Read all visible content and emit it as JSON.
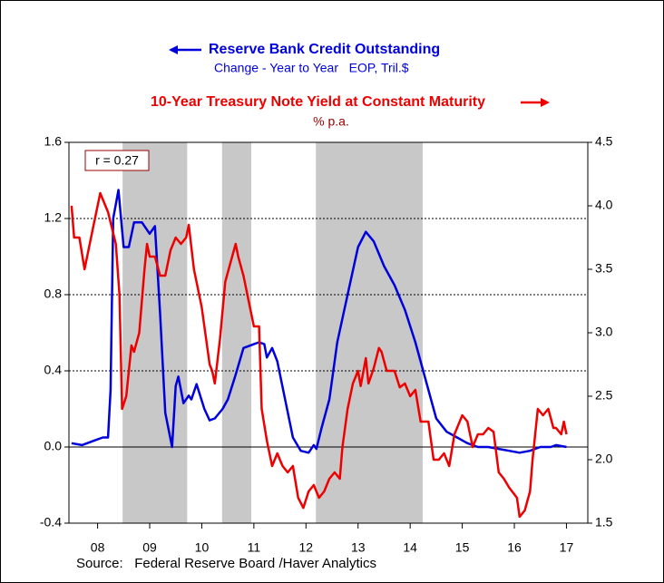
{
  "chart_data": {
    "type": "line",
    "series": [
      {
        "name": "Reserve Bank Credit Outstanding",
        "units": "Change - Year to Year   EOP, Tril.$",
        "color": "#0000dd",
        "axis": "y",
        "x": [
          2008.0,
          2008.2,
          2008.4,
          2008.6,
          2008.7,
          2008.75,
          2008.8,
          2008.9,
          2009.0,
          2009.1,
          2009.2,
          2009.35,
          2009.5,
          2009.6,
          2009.7,
          2009.8,
          2009.93,
          2010.0,
          2010.05,
          2010.15,
          2010.25,
          2010.3,
          2010.4,
          2010.55,
          2010.65,
          2010.75,
          2010.9,
          2011.0,
          2011.15,
          2011.3,
          2011.5,
          2011.6,
          2011.7,
          2011.75,
          2011.85,
          2011.95,
          2012.1,
          2012.25,
          2012.4,
          2012.55,
          2012.65,
          2012.7,
          2012.8,
          2012.95,
          2013.1,
          2013.3,
          2013.5,
          2013.65,
          2013.8,
          2014.0,
          2014.2,
          2014.4,
          2014.6,
          2014.8,
          2015.0,
          2015.2,
          2015.4,
          2015.6,
          2015.8,
          2016.0,
          2016.2,
          2016.4,
          2016.6,
          2016.8,
          2017.0,
          2017.2,
          2017.3,
          2017.5
        ],
        "values": [
          0.02,
          0.01,
          0.03,
          0.05,
          0.05,
          0.3,
          1.2,
          1.35,
          1.05,
          1.05,
          1.18,
          1.18,
          1.12,
          1.16,
          0.7,
          0.18,
          0.0,
          0.32,
          0.37,
          0.23,
          0.27,
          0.25,
          0.33,
          0.2,
          0.14,
          0.15,
          0.2,
          0.25,
          0.38,
          0.52,
          0.54,
          0.55,
          0.54,
          0.47,
          0.52,
          0.45,
          0.25,
          0.05,
          -0.02,
          -0.03,
          0.01,
          -0.01,
          0.1,
          0.25,
          0.55,
          0.8,
          1.05,
          1.13,
          1.08,
          0.95,
          0.85,
          0.72,
          0.55,
          0.35,
          0.15,
          0.08,
          0.05,
          0.02,
          0.0,
          0.0,
          -0.01,
          -0.02,
          -0.03,
          -0.02,
          0.0,
          0.0,
          0.01,
          0.0
        ]
      },
      {
        "name": "10-Year Treasury Note Yield at Constant Maturity",
        "units": "% p.a.",
        "color": "#ee0000",
        "axis": "y2",
        "x": [
          2008.0,
          2008.05,
          2008.15,
          2008.25,
          2008.4,
          2008.55,
          2008.7,
          2008.85,
          2008.92,
          2008.97,
          2009.05,
          2009.15,
          2009.2,
          2009.3,
          2009.4,
          2009.45,
          2009.5,
          2009.6,
          2009.7,
          2009.8,
          2009.9,
          2010.0,
          2010.1,
          2010.2,
          2010.25,
          2010.35,
          2010.5,
          2010.65,
          2010.7,
          2010.75,
          2010.85,
          2010.95,
          2011.05,
          2011.15,
          2011.2,
          2011.3,
          2011.4,
          2011.5,
          2011.6,
          2011.65,
          2011.75,
          2011.85,
          2011.95,
          2012.05,
          2012.15,
          2012.25,
          2012.35,
          2012.45,
          2012.55,
          2012.65,
          2012.75,
          2012.85,
          2012.95,
          2013.05,
          2013.15,
          2013.2,
          2013.3,
          2013.4,
          2013.5,
          2013.55,
          2013.65,
          2013.7,
          2013.8,
          2013.9,
          2013.95,
          2014.05,
          2014.2,
          2014.3,
          2014.4,
          2014.5,
          2014.6,
          2014.7,
          2014.85,
          2014.95,
          2015.05,
          2015.15,
          2015.25,
          2015.35,
          2015.5,
          2015.6,
          2015.7,
          2015.8,
          2015.9,
          2016.0,
          2016.1,
          2016.2,
          2016.3,
          2016.4,
          2016.55,
          2016.6,
          2016.7,
          2016.8,
          2016.85,
          2016.95,
          2017.05,
          2017.15,
          2017.25,
          2017.3,
          2017.4,
          2017.45,
          2017.5
        ],
        "values": [
          4.0,
          3.75,
          3.75,
          3.5,
          3.8,
          4.1,
          3.95,
          3.7,
          3.3,
          2.4,
          2.5,
          2.9,
          2.85,
          3.0,
          3.5,
          3.7,
          3.6,
          3.6,
          3.45,
          3.45,
          3.65,
          3.75,
          3.7,
          3.75,
          3.85,
          3.5,
          3.2,
          2.75,
          2.7,
          2.6,
          2.95,
          3.4,
          3.55,
          3.7,
          3.6,
          3.45,
          3.25,
          3.05,
          3.05,
          2.4,
          2.15,
          1.95,
          2.05,
          1.95,
          1.9,
          1.95,
          1.7,
          1.62,
          1.75,
          1.8,
          1.7,
          1.75,
          1.85,
          1.9,
          1.85,
          2.1,
          2.4,
          2.6,
          2.7,
          2.58,
          2.8,
          2.6,
          2.72,
          2.88,
          2.85,
          2.7,
          2.7,
          2.57,
          2.6,
          2.5,
          2.55,
          2.3,
          2.3,
          2.0,
          2.0,
          2.05,
          1.95,
          2.2,
          2.35,
          2.3,
          2.1,
          2.2,
          2.2,
          2.25,
          2.22,
          1.9,
          1.85,
          1.78,
          1.7,
          1.55,
          1.6,
          1.75,
          2.0,
          2.4,
          2.35,
          2.4,
          2.25,
          2.25,
          2.2,
          2.3,
          2.2
        ]
      }
    ],
    "xlim": [
      2007.95,
      2017.91
    ],
    "xticks": [
      {
        "value": 2008.5,
        "label": "08"
      },
      {
        "value": 2009.5,
        "label": "09"
      },
      {
        "value": 2010.5,
        "label": "10"
      },
      {
        "value": 2011.5,
        "label": "11"
      },
      {
        "value": 2012.5,
        "label": "12"
      },
      {
        "value": 2013.5,
        "label": "13"
      },
      {
        "value": 2014.5,
        "label": "14"
      },
      {
        "value": 2015.5,
        "label": "15"
      },
      {
        "value": 2016.5,
        "label": "16"
      },
      {
        "value": 2017.5,
        "label": "17"
      }
    ],
    "ylim": [
      -0.4,
      1.6
    ],
    "yticks": [
      -0.4,
      {
        "value": 0,
        "label": "0.0"
      },
      0.4,
      0.8,
      1.2,
      1.6
    ],
    "y2lim": [
      1.5,
      4.5
    ],
    "y2ticks": [
      1.5,
      {
        "value": 2,
        "label": "2.0"
      },
      2.5,
      {
        "value": 3,
        "label": "3.0"
      },
      3.5,
      {
        "value": 4,
        "label": "4.0"
      },
      4.5
    ],
    "grid": true,
    "shaded_periods": [
      [
        2008.98,
        2010.22
      ],
      [
        2010.89,
        2011.45
      ],
      [
        2012.69,
        2014.74
      ]
    ],
    "shade_color": "#c8c8c8",
    "annotation": "r = 0.27",
    "source": "Source:   Federal Reserve Board /Haver Analytics"
  }
}
